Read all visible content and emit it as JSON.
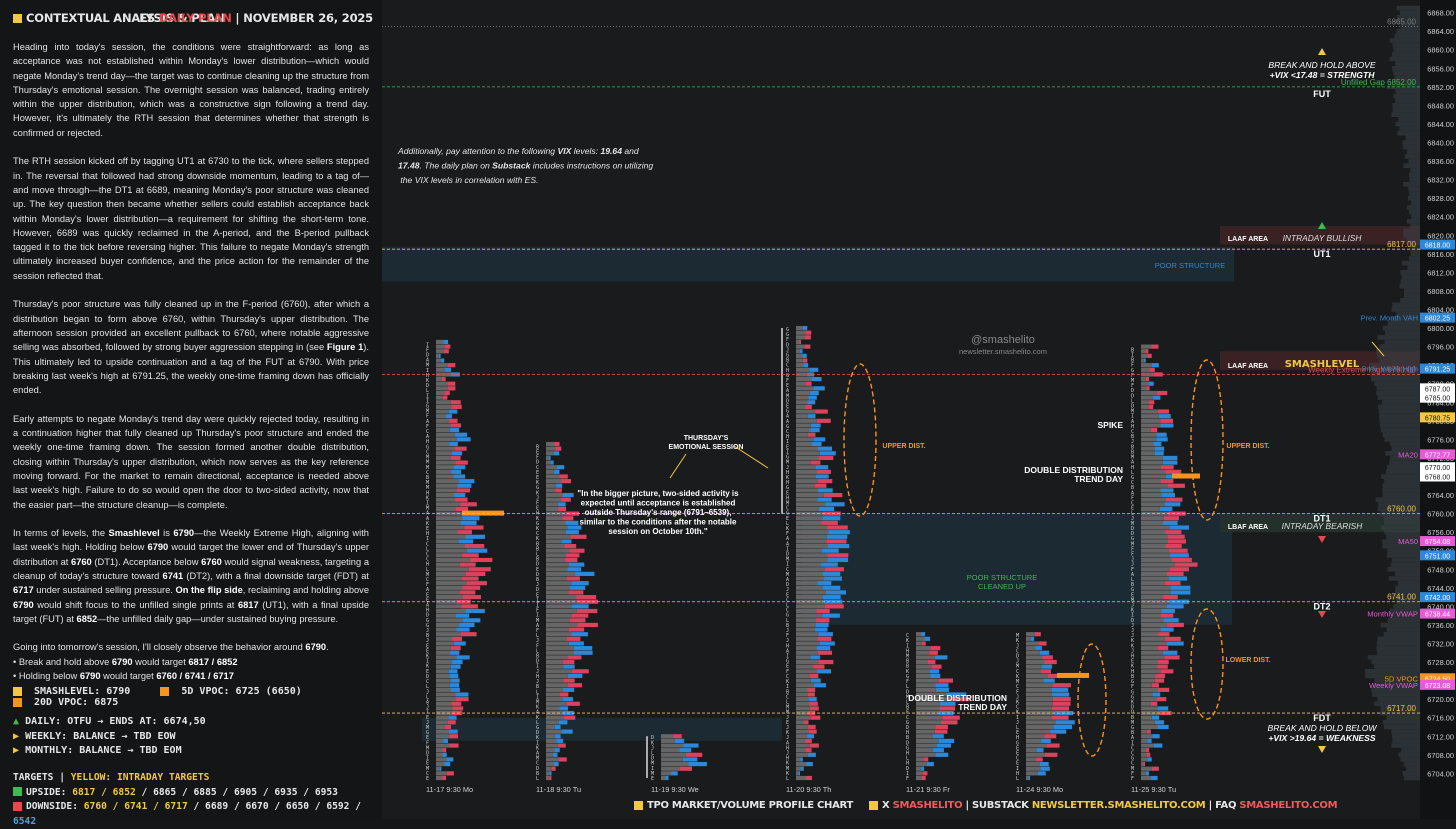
{
  "header": {
    "left_title": "CONTEXTUAL ANALYSIS & PLAN",
    "es": "ES",
    "daily_plan": "DAILY PLAN",
    "date": "NOVEMBER 26, 2025"
  },
  "narrative": {
    "p1": "Heading into today's session, the conditions were straightforward: as long as acceptance was not established within Monday's lower distribution—which would negate Monday's trend day—the target was to continue cleaning up the structure from Thursday's emotional session. The overnight session was balanced, trading entirely within the upper distribution, which was a constructive sign following a trend day. However, it's ultimately the RTH session that determines whether that strength is confirmed or rejected.",
    "p2": "The RTH session kicked off by tagging UT1 at 6730 to the tick, where sellers stepped in. The reversal that followed had strong downside momentum, leading to a tag of—and move through—the DT1 at 6689, meaning Monday's poor structure was cleaned up. The key question then became whether sellers could establish acceptance back within Monday's lower distribution—a requirement for shifting the short-term tone. However, 6689 was quickly reclaimed in the A-period, and the B-period pullback tagged it to the tick before reversing higher. This failure to negate Monday's strength ultimately increased buyer confidence, and the price action for the remainder of the session reflected that.",
    "p3a": "Thursday's poor structure was fully cleaned up in the F-period (6760), after which a distribution began to form above 6760, within Thursday's upper distribution. The afternoon session provided an excellent pullback to 6760, where notable aggressive selling was absorbed, followed by strong buyer aggression stepping in (see ",
    "p3b": "Figure 1",
    "p3c": "). This ultimately led to upside continuation and a tag of the FUT at 6790. With price breaking last week's high at 6791.25, the weekly one-time framing down has officially ended.",
    "p4": "Early attempts to negate Monday's trend day were quickly rejected today, resulting in a continuation higher that fully cleaned up Thursday's poor structure and ended the weekly one-time framing down. The session formed another double distribution, closing within Thursday's upper distribution, which now serves as the key reference moving forward. For the market to remain directional, acceptance is needed above last week's high. Failure to do so would open the door to two-sided activity, now that the easier part—the structure cleanup—is complete.",
    "p5": [
      [
        "In terms of levels, the ",
        ""
      ],
      [
        "Smashlevel",
        "b"
      ],
      [
        " is ",
        ""
      ],
      [
        "6790",
        "b"
      ],
      [
        "—the Weekly Extreme High, aligning with last week's high. Holding below ",
        ""
      ],
      [
        "6790",
        "b"
      ],
      [
        " would target the lower end of Thursday's upper distribution at ",
        ""
      ],
      [
        "6760",
        "b"
      ],
      [
        " (DT1). Acceptance below ",
        ""
      ],
      [
        "6760",
        "b"
      ],
      [
        " would signal weakness, targeting a cleanup of today's structure toward ",
        ""
      ],
      [
        "6741",
        "b"
      ],
      [
        " (DT2), with a final downside target (FDT) at ",
        ""
      ],
      [
        "6717",
        "b"
      ],
      [
        " under sustained selling pressure. ",
        ""
      ],
      [
        "On the flip side",
        "b"
      ],
      [
        ", reclaiming and holding above ",
        ""
      ],
      [
        "6790",
        "b"
      ],
      [
        " would shift focus to the unfilled single prints at ",
        ""
      ],
      [
        "6817",
        "b"
      ],
      [
        " (UT1), with a final upside target (FUT) at ",
        ""
      ],
      [
        "6852",
        "b"
      ],
      [
        "—the unfilled daily gap—under sustained buying pressure.",
        ""
      ]
    ],
    "p6": [
      [
        "Going into tomorrow's session, I'll closely observe the behavior around ",
        ""
      ],
      [
        "6790",
        "b"
      ],
      [
        ".",
        ""
      ]
    ],
    "bullet1": [
      [
        "• Break and hold above ",
        ""
      ],
      [
        "6790",
        "b"
      ],
      [
        " would target ",
        ""
      ],
      [
        "6817 / 6852",
        "b"
      ]
    ],
    "bullet2": [
      [
        "• Holding below ",
        ""
      ],
      [
        "6790",
        "b"
      ],
      [
        " would target ",
        ""
      ],
      [
        "6760 / 6741 / 6717",
        "b"
      ]
    ]
  },
  "legend": {
    "smashlevel": "SMASHLEVEL: 6790",
    "vpoc5d": "5D VPOC: 6725 (6650)",
    "vpoc20d": "20D VPOC: 6875"
  },
  "bias": {
    "daily": "DAILY: OTFU → ENDS AT: 6674,50",
    "weekly": "WEEKLY: BALANCE → TBD EOW",
    "monthly": "MONTHLY: BALANCE → TBD EOM"
  },
  "targets": {
    "title": "TARGETS",
    "yellow": "YELLOW: INTRADAY TARGETS",
    "up_label": "UPSIDE: ",
    "up_yellow": "6817 / 6852",
    "up_rest": " / 6865 / 6885 / 6905 / 6935 / 6953",
    "down_label": "DOWNSIDE: ",
    "down_yellow": "6760 / 6741 / 6717",
    "down_rest": " / 6689 / 6670 / 6650 / 6592 / ",
    "down_blue": "6542"
  },
  "footer": {
    "chart": "TPO MARKET/VOLUME PROFILE CHART",
    "x": "X",
    "x_handle": "SMASHELITO",
    "substack": "SUBSTACK",
    "substack_url": "NEWSLETTER.SMASHELITO.COM",
    "faq": "FAQ",
    "faq_url": "SMASHELITO.COM"
  },
  "colors": {
    "bg": "#151617",
    "yellow": "#f2c744",
    "red": "#e5484d",
    "orange": "#f7931e",
    "green": "#3fb950",
    "blue": "#4aa3df",
    "pink": "#e85ad8",
    "tpo_red": "#d9435e",
    "tpo_blue": "#2c88d9",
    "profile_grey": "#8a8a8a",
    "poor_band": "#1c2a33"
  },
  "chart_data": {
    "type": "tpo_profile",
    "ylim": [
      6703,
      6869
    ],
    "y_ticks": [
      6868,
      6864,
      6860,
      6856,
      6852,
      6848,
      6844,
      6840,
      6836,
      6832,
      6828,
      6824,
      6820,
      6816,
      6812,
      6808,
      6804,
      6800,
      6796,
      6792,
      6788,
      6784,
      6780,
      6776,
      6772,
      6768,
      6764,
      6760,
      6756,
      6752,
      6748,
      6744,
      6740,
      6736,
      6732,
      6728,
      6724,
      6720,
      6716,
      6712,
      6708,
      6704
    ],
    "x_ticks": [
      "11-17  9:30 Mo",
      "11-18  9:30 Tu",
      "11-19  9:30 We",
      "11-20  9:30 Th",
      "11-21  9:30 Fr",
      "11-24  9:30 Mo",
      "11-25  9:30 Tu"
    ],
    "sessions": [
      {
        "label": "11-17",
        "high": 6797,
        "low": 6703
      },
      {
        "label": "11-18",
        "high": 6775,
        "low": 6703
      },
      {
        "label": "11-19",
        "high": 6712,
        "low": 6703
      },
      {
        "label": "11-20",
        "high": 6800,
        "low": 6703
      },
      {
        "label": "11-21",
        "high": 6734,
        "low": 6703
      },
      {
        "label": "11-24",
        "high": 6734,
        "low": 6703
      },
      {
        "label": "11-25",
        "high": 6796,
        "low": 6703
      }
    ],
    "levels": [
      {
        "value": 6865.0,
        "label": "6865.00",
        "color": "#7a7a7a",
        "style": "dotted"
      },
      {
        "value": 6852.0,
        "label": "Unfilled Gap  6852.00",
        "color": "#3fb950",
        "style": "dashed"
      },
      {
        "value": 6817.0,
        "label": "6817.00",
        "color": "#f2c744",
        "style": "dashed"
      },
      {
        "value": 6790.0,
        "label": "Weekly Extreme High  6790.00",
        "color": "#e5484d",
        "style": "dashed"
      },
      {
        "value": 6760.0,
        "label": "6760.00",
        "color": "#f2c744",
        "style": "dashed"
      },
      {
        "value": 6741.0,
        "label": "6741.00",
        "color": "#f2c744",
        "style": "dashed"
      },
      {
        "value": 6717.0,
        "label": "6717.00",
        "color": "#f2c744",
        "style": "dashed"
      }
    ],
    "price_tags": [
      {
        "value": 6818.0,
        "label": "6818.00",
        "color": "#2c88d9"
      },
      {
        "value": 6802.25,
        "label": "Prev. Month VAH  6802.25",
        "color": "#2c88d9"
      },
      {
        "value": 6791.25,
        "label": "Prev. Week High  6791.25",
        "color": "#2c88d9"
      },
      {
        "value": 6787.0,
        "label": "6787.00",
        "color": "#ffffff"
      },
      {
        "value": 6785.0,
        "label": "6785.00",
        "color": "#ffffff"
      },
      {
        "value": 6780.75,
        "label": "6780.75",
        "color": "#f2c744"
      },
      {
        "value": 6772.77,
        "label": "MA20  6772.77",
        "color": "#e85ad8"
      },
      {
        "value": 6770.0,
        "label": "6770.00",
        "color": "#ffffff"
      },
      {
        "value": 6768.0,
        "label": "6768.00",
        "color": "#ffffff"
      },
      {
        "value": 6754.08,
        "label": "MA50  6754.08",
        "color": "#e85ad8"
      },
      {
        "value": 6751.0,
        "label": "6751.00",
        "color": "#2c88d9"
      },
      {
        "value": 6742.0,
        "label": "6742.00",
        "color": "#2c88d9"
      },
      {
        "value": 6738.44,
        "label": "Monthly VWAP  6738.44",
        "color": "#e85ad8"
      },
      {
        "value": 6724.5,
        "label": "5D VPOC  6724.50",
        "color": "#f7931e"
      },
      {
        "value": 6723.08,
        "label": "Weekly VWAP  6723.08",
        "color": "#e85ad8"
      }
    ],
    "targets_right": [
      {
        "value": 6852,
        "label": "FUT"
      },
      {
        "value": 6817,
        "label": "UT1"
      },
      {
        "value": 6760,
        "label": "DT1"
      },
      {
        "value": 6741,
        "label": "DT2"
      },
      {
        "value": 6717,
        "label": "FDT"
      }
    ],
    "annotations": {
      "vix": [
        [
          "Additionally, pay attention to the following ",
          ""
        ],
        [
          "VIX",
          "b"
        ],
        [
          " levels: ",
          ""
        ],
        [
          "19.64",
          "b"
        ],
        [
          " and ",
          ""
        ],
        [
          "17.48",
          "b"
        ],
        [
          ". The daily plan on ",
          ""
        ],
        [
          "Substack",
          "b"
        ],
        [
          " includes instructions on utilizing the VIX levels in correlation with ES.",
          ""
        ]
      ],
      "break_above_1": "BREAK AND HOLD ABOVE",
      "break_above_2": "+VIX <17.48 = STRENGTH",
      "break_below_1": "BREAK AND HOLD BELOW",
      "break_below_2": "+VIX >19.64 = WEAKNESS",
      "laaf": "LAAF AREA",
      "intraday_bullish": "INTRADAY BULLISH",
      "laaf2": "LAAF AREA",
      "smashlevel": "SMASHLEVEL",
      "lbaf": "LBAF AREA",
      "intraday_bearish": "INTRADAY BEARISH",
      "poor_structure": "POOR STRUCTURE",
      "poor_cleaned_1": "POOR STRUCTURE",
      "poor_cleaned_2": "CLEANED UP",
      "thursday_1": "THURSDAY'S",
      "thursday_2": "EMOTIONAL SESSION",
      "quote_1": "\"In the bigger picture, two-sided activity is",
      "quote_2": "expected until acceptance is established",
      "quote_3": "outside Thursday's range (6791–6539),",
      "quote_4": "similar to the conditions after the notable",
      "quote_5": "session on October 10th.\"",
      "upper_dist": "UPPER DIST.",
      "upper_dist2": "UPPER DIST.",
      "lower_dist": "LOWER DIST.",
      "spike": "SPIKE",
      "dd1_1": "DOUBLE DISTRIBUTION",
      "dd1_2": "TREND DAY",
      "dd2_1": "DOUBLE DISTRIBUTION",
      "dd2_2": "TREND DAY",
      "handle": "@smashelito",
      "site": "newsletter.smashelito.com"
    }
  }
}
